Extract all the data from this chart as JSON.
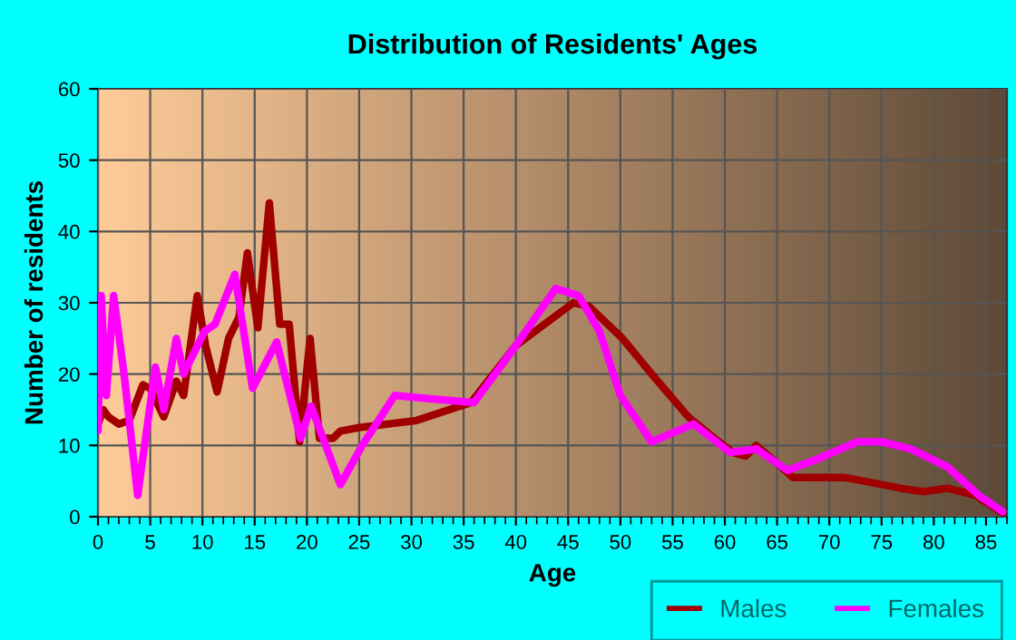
{
  "chart_data": {
    "type": "line",
    "title": "Distribution of Residents' Ages",
    "xlabel": "Age",
    "ylabel": "Number of residents",
    "xlim": [
      0,
      87
    ],
    "xticks": [
      0,
      5,
      10,
      15,
      20,
      25,
      30,
      35,
      40,
      45,
      50,
      55,
      60,
      65,
      70,
      75,
      80,
      85
    ],
    "ylim": [
      0,
      60
    ],
    "yticks": [
      0,
      10,
      20,
      30,
      40,
      50,
      60
    ],
    "grid": true,
    "legend": "bottom right",
    "marker": "none",
    "line_style": "solid",
    "series": [
      {
        "name": "Males",
        "color": "#a00000",
        "x": [
          0,
          0.5,
          1,
          2,
          3,
          4.3,
          5,
          6.3,
          7.5,
          8.2,
          9.5,
          10.3,
          11.4,
          12.5,
          13.5,
          14.3,
          15.3,
          16.4,
          17.4,
          18.3,
          19.3,
          20.3,
          21.2,
          22.5,
          23.2,
          25,
          30.5,
          35.7,
          40,
          45.5,
          47,
          50.2,
          53,
          56.5,
          59,
          60.8,
          62,
          63,
          65,
          66.5,
          71.5,
          76.8,
          79,
          81.3,
          84,
          86.6
        ],
        "values": [
          13,
          15,
          14,
          13,
          13.5,
          18.5,
          18,
          14,
          19,
          17,
          31,
          24,
          17.5,
          25,
          28,
          37,
          26.5,
          44,
          27,
          27,
          10.5,
          25,
          11,
          11,
          12,
          12.5,
          13.5,
          16,
          24,
          30,
          29.5,
          25,
          20,
          14,
          11,
          9,
          8.5,
          10,
          7.5,
          5.5,
          5.5,
          4,
          3.5,
          4,
          3,
          0.5
        ]
      },
      {
        "name": "Females",
        "color": "#ff00ff",
        "x": [
          0,
          0.3,
          0.8,
          1.5,
          2.5,
          3.8,
          5.5,
          6.3,
          7.5,
          8.2,
          10.2,
          11.2,
          13.1,
          14.8,
          17.1,
          19.4,
          20.4,
          23.2,
          25.3,
          28.4,
          32,
          36,
          40,
          43.8,
          46,
          48,
          50,
          53,
          57,
          60.5,
          63,
          66,
          68.7,
          72.7,
          75,
          77.8,
          81.3,
          84.3,
          86.6
        ],
        "values": [
          12,
          31,
          17,
          31,
          20,
          3,
          21,
          15,
          25,
          20,
          26,
          27,
          34,
          18,
          24.5,
          11,
          15.5,
          4.5,
          10,
          17,
          16.5,
          16,
          24,
          32,
          31,
          26,
          17,
          10.5,
          13,
          9,
          9.5,
          6.5,
          8,
          10.5,
          10.5,
          9.5,
          7,
          3,
          0.7
        ]
      }
    ]
  }
}
